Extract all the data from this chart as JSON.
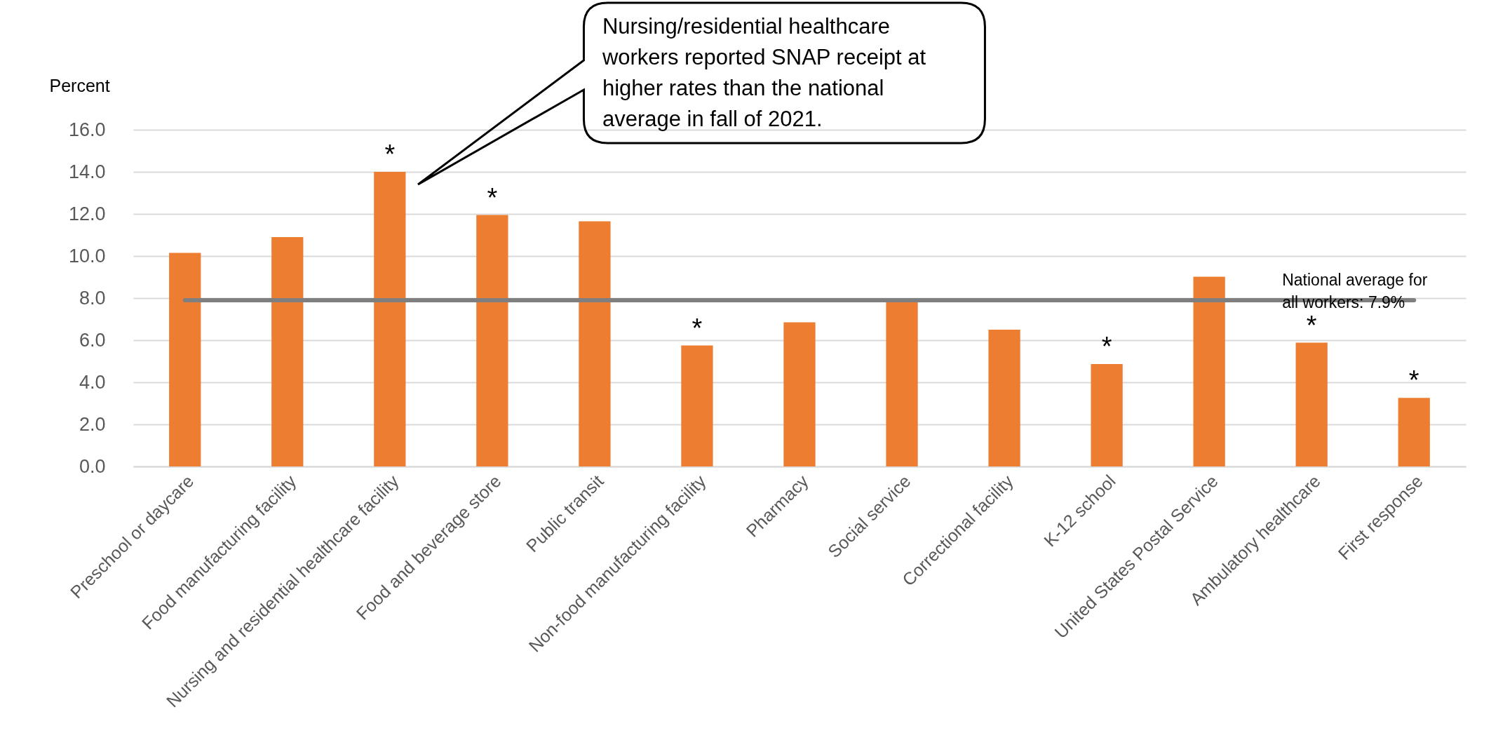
{
  "chart_data": {
    "type": "bar",
    "ylabel": "Percent",
    "categories": [
      "Preschool or daycare",
      "Food manufacturing facility",
      "Nursing and residential healthcare facility",
      "Food and beverage store",
      "Public transit",
      "Non-food manufacturing facility",
      "Pharmacy",
      "Social service",
      "Correctional facility",
      "K-12 school",
      "United States Postal Service",
      "Ambulatory healthcare",
      "First response"
    ],
    "values": [
      10.15,
      10.9,
      14.0,
      11.95,
      11.65,
      5.75,
      6.85,
      7.85,
      6.5,
      4.87,
      9.02,
      5.88,
      3.26
    ],
    "color": "#ed7d31",
    "ylim": [
      0,
      16
    ],
    "yticks": [
      {
        "value": 0,
        "label": "0.0"
      },
      {
        "value": 2,
        "label": "2.0"
      },
      {
        "value": 4,
        "label": "4.0"
      },
      {
        "value": 6,
        "label": "6.0"
      },
      {
        "value": 8,
        "label": "8.0"
      },
      {
        "value": 10,
        "label": "10.0"
      },
      {
        "value": 12,
        "label": "12.0"
      },
      {
        "value": 14,
        "label": "14.0"
      },
      {
        "value": 16,
        "label": "16.0"
      }
    ],
    "grid": "y",
    "legend": false,
    "ref_lines": [
      {
        "axis": "y",
        "value": 7.9,
        "label": "National average for all workers: 7.9%",
        "color": "#7f7f7f"
      }
    ],
    "annotations": [
      "Nursing/residential healthcare workers reported SNAP receipt at higher rates than the national average in fall of 2021.",
      {
        "text": "*",
        "x": "Nursing and residential healthcare facility",
        "y": 14.0
      },
      {
        "text": "*",
        "x": "Food and beverage store",
        "y": 11.95
      },
      {
        "text": "*",
        "x": "Non-food manufacturing facility",
        "y": 5.75
      },
      {
        "text": "*",
        "x": "K-12 school",
        "y": 4.87
      },
      {
        "text": "*",
        "x": "Ambulatory healthcare",
        "y": 5.88
      },
      {
        "text": "*",
        "x": "First response",
        "y": 3.26
      }
    ]
  }
}
